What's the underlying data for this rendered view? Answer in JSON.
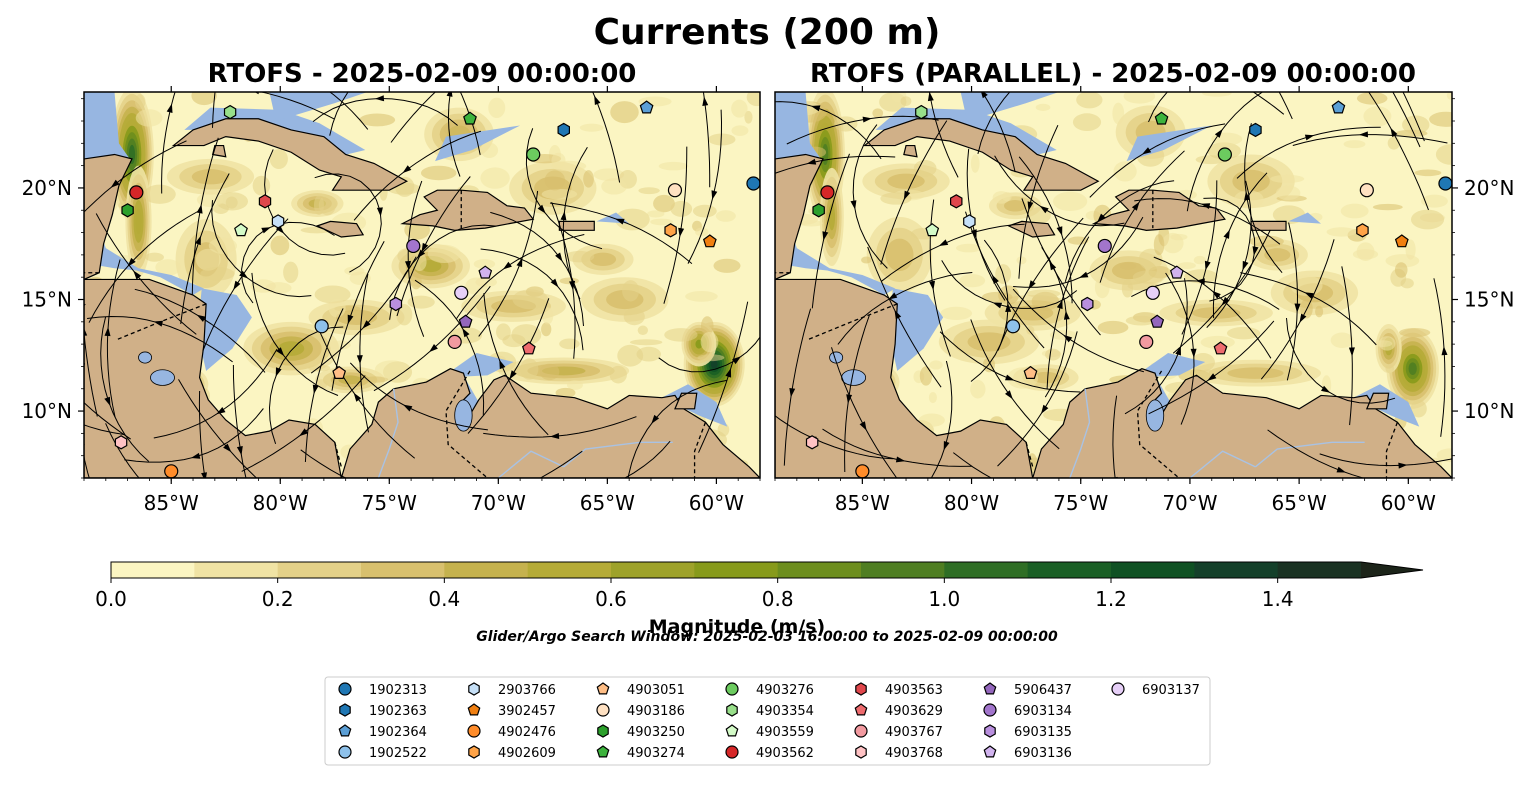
{
  "figure": {
    "suptitle": "Currents (200 m)",
    "search_window": "Glider/Argo Search Window: 2025-02-03 16:00:00 to 2025-02-09 00:00:00"
  },
  "chart_data": [
    {
      "type": "heatmap",
      "title": "RTOFS - 2025-02-09 00:00:00",
      "x_ticks": [
        "85°W",
        "80°W",
        "75°W",
        "70°W",
        "65°W",
        "60°W"
      ],
      "x_tick_values": [
        -85,
        -80,
        -75,
        -70,
        -65,
        -60
      ],
      "y_ticks": [
        "20°N",
        "15°N",
        "10°N"
      ],
      "y_tick_values": [
        20,
        15,
        10
      ],
      "xlim": [
        -89,
        -58
      ],
      "ylim": [
        7,
        24.3
      ],
      "y_tick_side": "left"
    },
    {
      "type": "heatmap",
      "title": "RTOFS (PARALLEL) - 2025-02-09 00:00:00",
      "x_ticks": [
        "85°W",
        "80°W",
        "75°W",
        "70°W",
        "65°W",
        "60°W"
      ],
      "x_tick_values": [
        -85,
        -80,
        -75,
        -70,
        -65,
        -60
      ],
      "y_ticks": [
        "20°N",
        "15°N",
        "10°N"
      ],
      "y_tick_values": [
        20,
        15,
        10
      ],
      "xlim": [
        -89,
        -58
      ],
      "ylim": [
        7,
        24.3
      ],
      "y_tick_side": "right"
    }
  ],
  "colorbar": {
    "label": "Magnitude (m/s)",
    "min": 0.0,
    "max": 1.5,
    "extend": "max",
    "ticks": [
      "0.0",
      "0.2",
      "0.4",
      "0.6",
      "0.8",
      "1.0",
      "1.2",
      "1.4"
    ],
    "tick_values": [
      0.0,
      0.2,
      0.4,
      0.6,
      0.8,
      1.0,
      1.2,
      1.4
    ],
    "colors": [
      "#fbf5c2",
      "#f0e3a4",
      "#e4d189",
      "#d8c06e",
      "#c5b24e",
      "#b5ab37",
      "#9ea22a",
      "#879a1b",
      "#6d8e1e",
      "#4f7e22",
      "#2f6e25",
      "#1a5f25",
      "#0f5123",
      "#14402a",
      "#1a3223",
      "#1c2419"
    ]
  },
  "map_colors": {
    "ocean": "#97b6e1",
    "land": "#d0b088",
    "river": "#a9c2e3",
    "border": "#000000"
  },
  "legend": {
    "items": [
      {
        "label": "1902313",
        "marker": "circle",
        "color": "#1f77b4"
      },
      {
        "label": "1902363",
        "marker": "hexagon",
        "color": "#1f77b4"
      },
      {
        "label": "1902364",
        "marker": "pentagon",
        "color": "#5b9fd6"
      },
      {
        "label": "1902522",
        "marker": "circle",
        "color": "#8ec1ea"
      },
      {
        "label": "2903766",
        "marker": "hexagon",
        "color": "#c6e0f7"
      },
      {
        "label": "3902457",
        "marker": "pentagon",
        "color": "#f07f11"
      },
      {
        "label": "4902476",
        "marker": "circle",
        "color": "#ff8c2a"
      },
      {
        "label": "4902609",
        "marker": "hexagon",
        "color": "#ffa347"
      },
      {
        "label": "4903051",
        "marker": "pentagon",
        "color": "#ffbe86"
      },
      {
        "label": "4903186",
        "marker": "circle",
        "color": "#ffe1c2"
      },
      {
        "label": "4903250",
        "marker": "hexagon",
        "color": "#2ca02c"
      },
      {
        "label": "4903274",
        "marker": "pentagon",
        "color": "#3db33d"
      },
      {
        "label": "4903276",
        "marker": "circle",
        "color": "#6ccb5f"
      },
      {
        "label": "4903354",
        "marker": "hexagon",
        "color": "#98df8a"
      },
      {
        "label": "4903559",
        "marker": "pentagon",
        "color": "#d4fbc8"
      },
      {
        "label": "4903562",
        "marker": "circle",
        "color": "#d62728"
      },
      {
        "label": "4903563",
        "marker": "hexagon",
        "color": "#e0474c"
      },
      {
        "label": "4903629",
        "marker": "pentagon",
        "color": "#ee6b6e"
      },
      {
        "label": "4903767",
        "marker": "circle",
        "color": "#f29aa0"
      },
      {
        "label": "4903768",
        "marker": "hexagon",
        "color": "#ffc2c4"
      },
      {
        "label": "5906437",
        "marker": "pentagon",
        "color": "#9467bd"
      },
      {
        "label": "6903134",
        "marker": "circle",
        "color": "#a275cc"
      },
      {
        "label": "6903135",
        "marker": "hexagon",
        "color": "#b98fde"
      },
      {
        "label": "6903136",
        "marker": "pentagon",
        "color": "#d1b3ee"
      },
      {
        "label": "6903137",
        "marker": "circle",
        "color": "#e6cff7"
      }
    ]
  },
  "observations": [
    {
      "id": "1902313",
      "lon": -58.3,
      "lat": 20.2
    },
    {
      "id": "1902363",
      "lon": -67.0,
      "lat": 22.6
    },
    {
      "id": "1902364",
      "lon": -63.2,
      "lat": 23.6
    },
    {
      "id": "1902522",
      "lon": -78.1,
      "lat": 13.8
    },
    {
      "id": "2903766",
      "lon": -80.1,
      "lat": 18.5
    },
    {
      "id": "3902457",
      "lon": -60.3,
      "lat": 17.6
    },
    {
      "id": "4902476",
      "lon": -85.0,
      "lat": 7.3
    },
    {
      "id": "4902609",
      "lon": -62.1,
      "lat": 18.1
    },
    {
      "id": "4903051",
      "lon": -77.3,
      "lat": 11.7
    },
    {
      "id": "4903186",
      "lon": -61.9,
      "lat": 19.9
    },
    {
      "id": "4903250",
      "lon": -87.0,
      "lat": 19.0
    },
    {
      "id": "4903274",
      "lon": -71.3,
      "lat": 23.1
    },
    {
      "id": "4903276",
      "lon": -68.4,
      "lat": 21.5
    },
    {
      "id": "4903354",
      "lon": -82.3,
      "lat": 23.4
    },
    {
      "id": "4903559",
      "lon": -81.8,
      "lat": 18.1
    },
    {
      "id": "4903562",
      "lon": -86.6,
      "lat": 19.8
    },
    {
      "id": "4903563",
      "lon": -80.7,
      "lat": 19.4
    },
    {
      "id": "4903629",
      "lon": -68.6,
      "lat": 12.8
    },
    {
      "id": "4903767",
      "lon": -72.0,
      "lat": 13.1
    },
    {
      "id": "4903768",
      "lon": -87.3,
      "lat": 8.6
    },
    {
      "id": "5906437",
      "lon": -71.5,
      "lat": 14.0
    },
    {
      "id": "6903134",
      "lon": -73.9,
      "lat": 17.4
    },
    {
      "id": "6903135",
      "lon": -74.7,
      "lat": 14.8
    },
    {
      "id": "6903136",
      "lon": -70.6,
      "lat": 16.2
    },
    {
      "id": "6903137",
      "lon": -71.7,
      "lat": 15.3
    }
  ]
}
